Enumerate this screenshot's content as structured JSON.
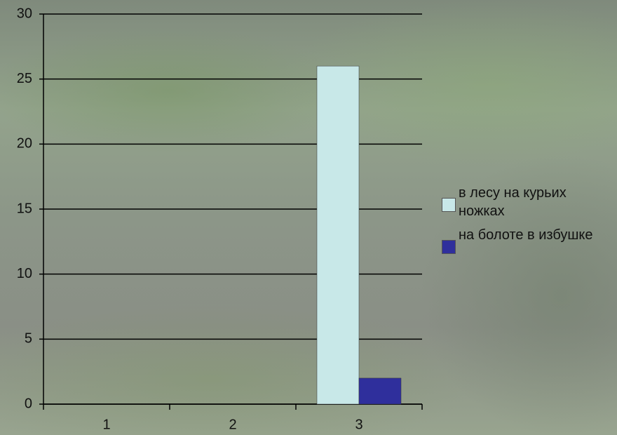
{
  "chart_data": {
    "type": "bar",
    "categories": [
      "1",
      "2",
      "3"
    ],
    "series": [
      {
        "name": "в лесу на курьих ножках",
        "color": "#c8e8e8",
        "values": [
          null,
          null,
          26
        ]
      },
      {
        "name": "на болоте в избушке",
        "color": "#2f2f9c",
        "values": [
          null,
          null,
          2
        ]
      }
    ],
    "ylim": [
      0,
      30
    ],
    "yticks": [
      0,
      5,
      10,
      15,
      20,
      25,
      30
    ],
    "grid": true,
    "legend": "right"
  }
}
